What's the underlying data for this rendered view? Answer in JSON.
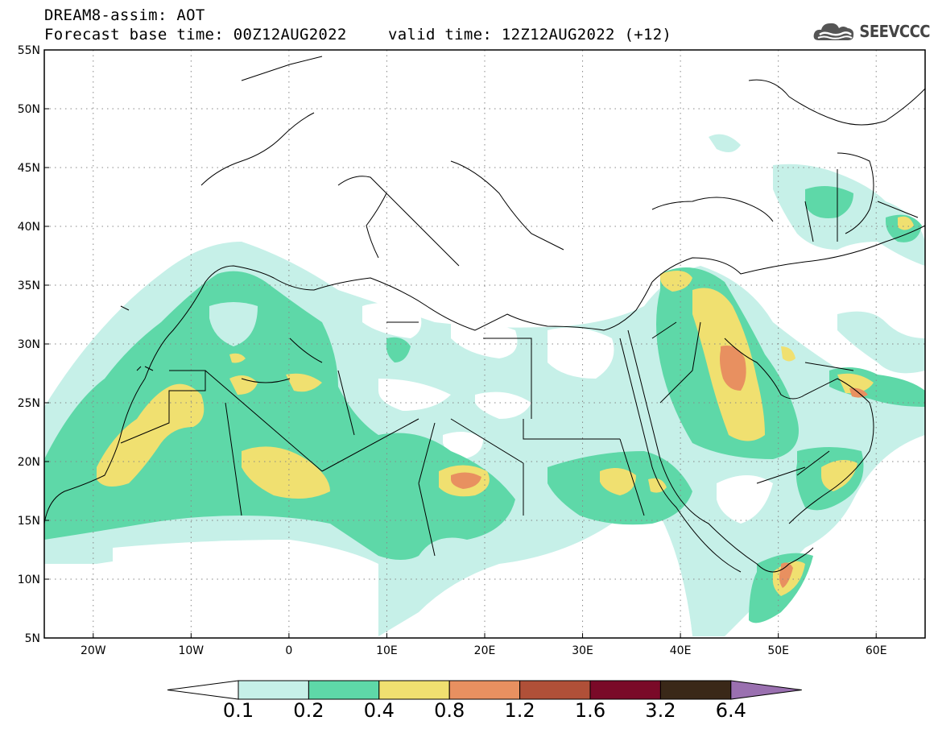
{
  "header": {
    "model_line": "DREAM8-assim: AOT",
    "forecast_line": "Forecast base time: 00Z12AUG2022",
    "valid_line": "valid time: 12Z12AUG2022 (+12)"
  },
  "logo": {
    "text": "SEEVCCC",
    "icon": "cloud-icon"
  },
  "map": {
    "lon_range": [
      -25,
      65
    ],
    "lat_range": [
      5,
      55
    ],
    "grid": "dotted",
    "lat_labels": [
      "5N",
      "10N",
      "15N",
      "20N",
      "25N",
      "30N",
      "35N",
      "40N",
      "45N",
      "50N",
      "55N"
    ],
    "lon_labels": [
      "20W",
      "10W",
      "0",
      "10E",
      "20E",
      "30E",
      "40E",
      "50E",
      "60E"
    ]
  },
  "colorbar": {
    "labels": [
      "0.1",
      "0.2",
      "0.4",
      "0.8",
      "1.2",
      "1.6",
      "3.2",
      "6.4"
    ],
    "colors": [
      "#ffffff",
      "#c6f0e8",
      "#5ed8a8",
      "#f0e070",
      "#e89060",
      "#b05038",
      "#7a0a28",
      "#3a2818",
      "#9a70b0"
    ]
  }
}
